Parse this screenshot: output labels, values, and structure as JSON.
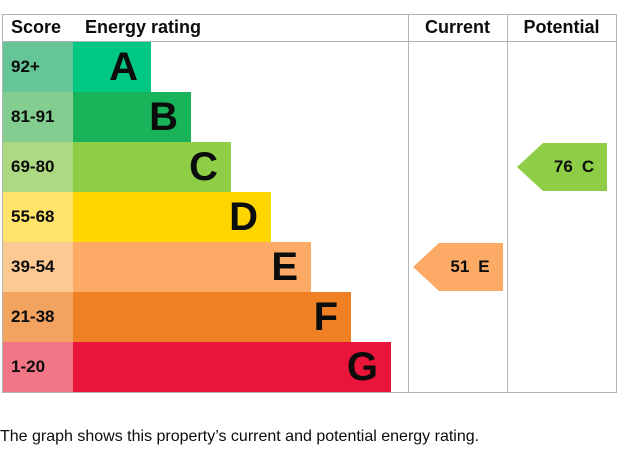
{
  "header": {
    "score": "Score",
    "rating": "Energy rating",
    "current": "Current",
    "potential": "Potential"
  },
  "chart_data": {
    "type": "bar",
    "title": "Energy rating",
    "categories": [
      "A",
      "B",
      "C",
      "D",
      "E",
      "F",
      "G"
    ],
    "score_ranges": [
      "92+",
      "81-91",
      "69-80",
      "55-68",
      "39-54",
      "21-38",
      "1-20"
    ],
    "band_colors": [
      "#00c781",
      "#19b459",
      "#8dce46",
      "#ffd500",
      "#fcaa65",
      "#ef8023",
      "#e9153b"
    ],
    "score_cell_colors": [
      "#66c596",
      "#82cd8f",
      "#aed983",
      "#ffe36a",
      "#fcc993",
      "#f3a360",
      "#f27686"
    ],
    "grid": false,
    "legend": false,
    "markers": [
      {
        "column": "current",
        "value": "51",
        "band": "E",
        "band_index": 4,
        "color": "#fcaa65"
      },
      {
        "column": "potential",
        "value": "76",
        "band": "C",
        "band_index": 2,
        "color": "#8dce46"
      }
    ]
  },
  "footer": {
    "caption": "The graph shows this property’s current and potential energy rating."
  }
}
